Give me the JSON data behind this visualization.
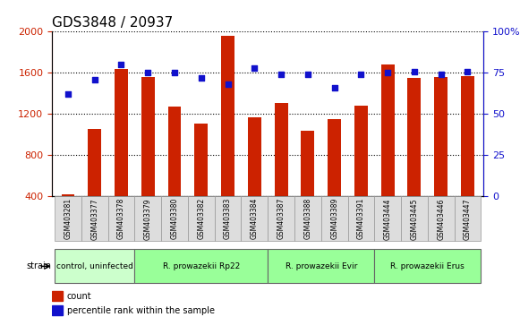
{
  "title": "GDS3848 / 20937",
  "samples": [
    "GSM403281",
    "GSM403377",
    "GSM403378",
    "GSM403379",
    "GSM403380",
    "GSM403382",
    "GSM403383",
    "GSM403384",
    "GSM403387",
    "GSM403388",
    "GSM403389",
    "GSM403391",
    "GSM403444",
    "GSM403445",
    "GSM403446",
    "GSM403447"
  ],
  "counts": [
    420,
    1060,
    1640,
    1560,
    1270,
    1110,
    1960,
    1170,
    1310,
    1040,
    1150,
    1280,
    1680,
    1550,
    1560,
    1570
  ],
  "percentiles": [
    62,
    71,
    80,
    75,
    75,
    72,
    68,
    78,
    74,
    74,
    66,
    74,
    75,
    76,
    74,
    76
  ],
  "bar_color": "#cc2200",
  "dot_color": "#1111cc",
  "ylim_left": [
    400,
    2000
  ],
  "ylim_right": [
    0,
    100
  ],
  "yticks_left": [
    400,
    800,
    1200,
    1600,
    2000
  ],
  "yticks_right": [
    0,
    25,
    50,
    75,
    100
  ],
  "yticklabels_right": [
    "0",
    "25",
    "50",
    "75",
    "100%"
  ],
  "groups": [
    {
      "label": "control, uninfected",
      "start": 0,
      "end": 3,
      "color": "#ccffcc"
    },
    {
      "label": "R. prowazekii Rp22",
      "start": 3,
      "end": 8,
      "color": "#99ff99"
    },
    {
      "label": "R. prowazekii Evir",
      "start": 8,
      "end": 12,
      "color": "#99ff99"
    },
    {
      "label": "R. prowazekii Erus",
      "start": 12,
      "end": 16,
      "color": "#99ff99"
    }
  ],
  "xlabel_strain": "strain",
  "legend_count_label": "count",
  "legend_pct_label": "percentile rank within the sample",
  "tick_color_left": "#cc2200",
  "tick_color_right": "#1111cc",
  "title_fontsize": 11,
  "bar_width": 0.5,
  "sample_bg_color": "#dddddd",
  "sample_border_color": "#999999"
}
